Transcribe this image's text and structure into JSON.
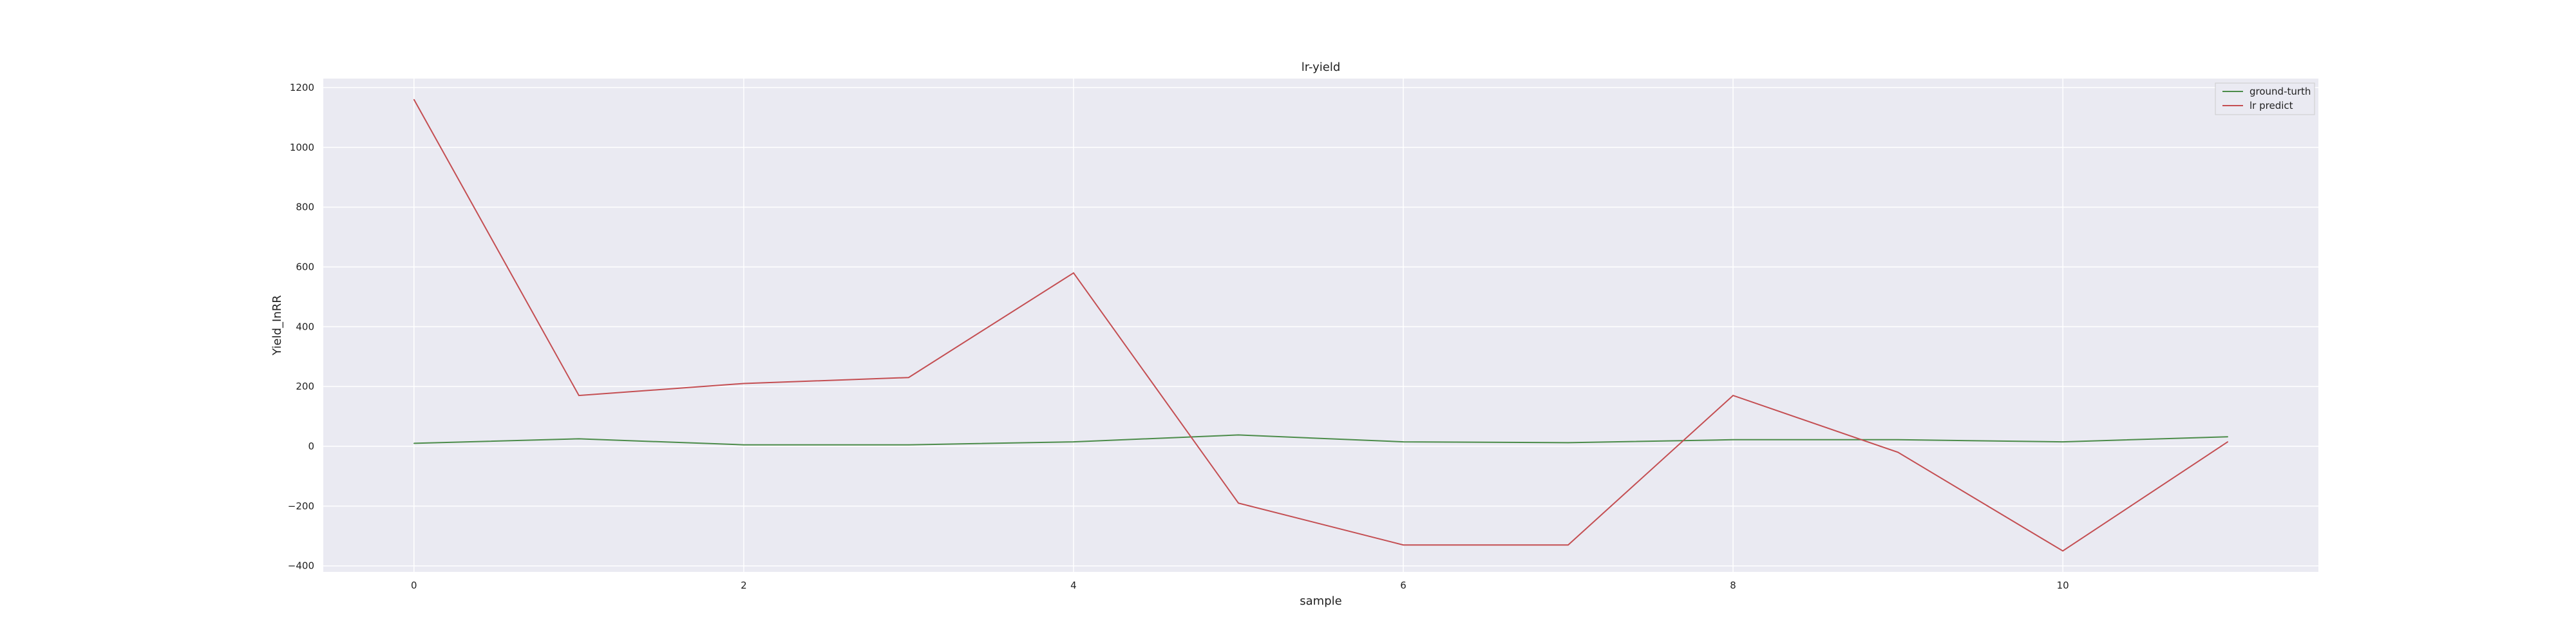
{
  "chart_data": {
    "type": "line",
    "title": "lr-yield",
    "xlabel": "sample",
    "ylabel": "Yield_InRR",
    "x": [
      0,
      1,
      2,
      3,
      4,
      5,
      6,
      7,
      8,
      9,
      10,
      11
    ],
    "xticks": [
      0,
      2,
      4,
      6,
      8,
      10
    ],
    "yticks": [
      -400,
      -200,
      0,
      200,
      400,
      600,
      800,
      1000,
      1200
    ],
    "xlim": [
      -0.55,
      11.55
    ],
    "ylim": [
      -420,
      1230
    ],
    "grid": true,
    "legend_position": "top-right",
    "background_color": "#eaeaf2",
    "grid_color": "#ffffff",
    "series": [
      {
        "name": "ground-turth",
        "color": "#4c8c4a",
        "values": [
          10,
          25,
          5,
          5,
          15,
          38,
          15,
          12,
          22,
          22,
          15,
          32
        ]
      },
      {
        "name": "lr predict",
        "color": "#c44e52",
        "values": [
          1160,
          170,
          210,
          230,
          580,
          -190,
          -330,
          -330,
          170,
          -20,
          -350,
          15
        ]
      }
    ]
  }
}
